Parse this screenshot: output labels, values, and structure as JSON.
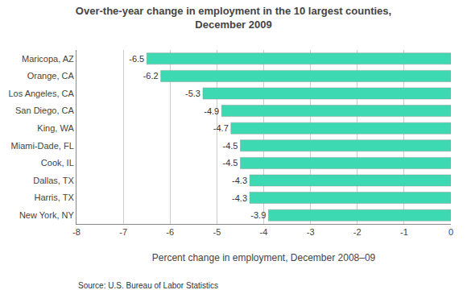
{
  "chart_data": {
    "type": "bar",
    "title": "Over-the-year change in employment in the 10 largest counties,\nDecember 2009",
    "categories": [
      "New York, NY",
      "Harris, TX",
      "Dallas, TX",
      "Cook, IL",
      "Miami-Dade, FL",
      "King, WA",
      "San Diego, CA",
      "Los Angeles, CA",
      "Orange, CA",
      "Maricopa, AZ"
    ],
    "values": [
      -3.9,
      -4.3,
      -4.3,
      -4.5,
      -4.5,
      -4.7,
      -4.9,
      -5.3,
      -6.2,
      -6.5
    ],
    "color": "#3DD9B3",
    "orientation": "horizontal",
    "xlabel": "Percent change in employment, December 2008–09",
    "xlim": [
      -8,
      0
    ],
    "xticks": [
      -8,
      -7,
      -6,
      -5,
      -4,
      -3,
      -2,
      -1,
      0
    ],
    "grid": true,
    "data_labels": true,
    "annotations": [
      "Source: U.S. Bureau of Labor Statistics"
    ]
  }
}
